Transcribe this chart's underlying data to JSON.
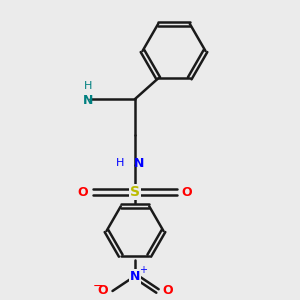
{
  "background_color": "#ebebeb",
  "bond_color": "#1a1a1a",
  "N_color": "#0000ff",
  "O_color": "#ff0000",
  "S_color": "#bbbb00",
  "NH2_color": "#008080",
  "figsize": [
    3.0,
    3.0
  ],
  "dpi": 100,
  "xlim": [
    0,
    10
  ],
  "ylim": [
    0,
    10
  ]
}
